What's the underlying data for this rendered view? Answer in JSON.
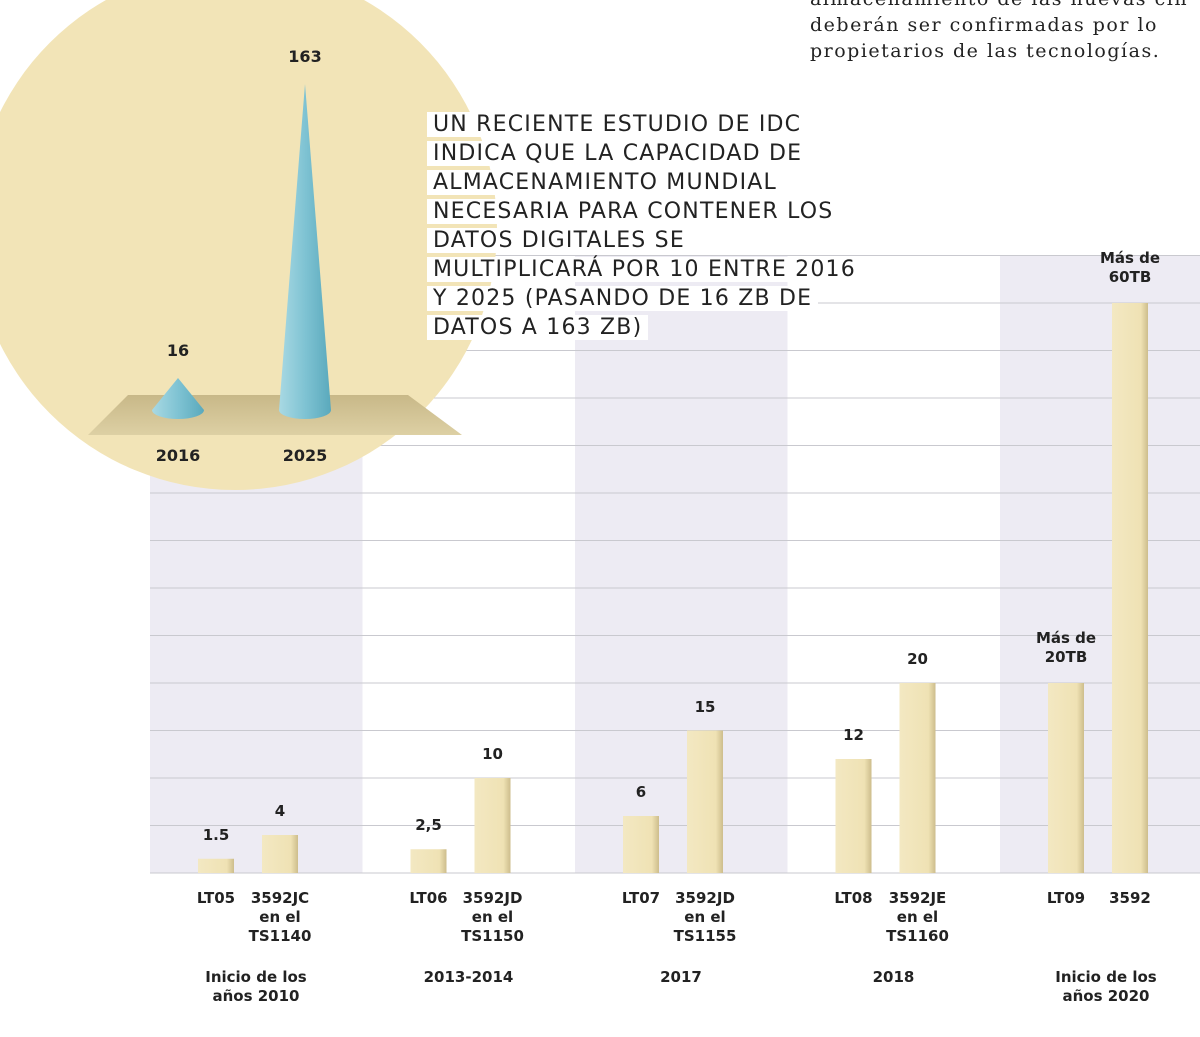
{
  "paragraph": [
    "almacenamiento de las nuevas cin",
    "deberán ser confirmadas por lo",
    "propietarios de las tecnologías."
  ],
  "chart_data": [
    {
      "type": "bar",
      "categories": [
        "LT05",
        "3592JC en el TS1140",
        "LT06",
        "3592JD en el TS1150",
        "LT07",
        "3592JD en el TS1155",
        "LT08",
        "3592JE en el TS1160",
        "LT09",
        "3592"
      ],
      "groups": [
        "Inicio de los años 2010",
        "2013-2014",
        "2017",
        "2018",
        "Inicio de los años 2020"
      ],
      "values": [
        1.5,
        4,
        2.5,
        10,
        6,
        15,
        12,
        20,
        20,
        60
      ],
      "value_labels": [
        "1.5",
        "4",
        "2,5",
        "10",
        "6",
        "15",
        "12",
        "20",
        "Más de 20TB",
        "Más de 60TB"
      ],
      "color": "#f1e5bb",
      "ylim": [
        0,
        65
      ],
      "yticks": [
        0,
        5,
        10,
        15,
        20,
        25,
        30,
        35,
        40,
        45,
        50,
        55,
        60,
        65
      ],
      "grid": true
    },
    {
      "type": "cone",
      "categories": [
        "2016",
        "2025"
      ],
      "values": [
        16,
        163
      ],
      "color": "#7fc3d3",
      "annotation": "UN RECIENTE ESTUDIO DE IDC INDICA QUE LA CAPACIDAD DE ALMACENAMIENTO MUNDIAL NECESARIA PARA CONTENER LOS DATOS DIGITALES SE MULTIPLICARÁ POR 10 ENTRE 2016 Y 2025 (PASANDO DE 16 ZB DE DATOS A 163 ZB)"
    }
  ]
}
